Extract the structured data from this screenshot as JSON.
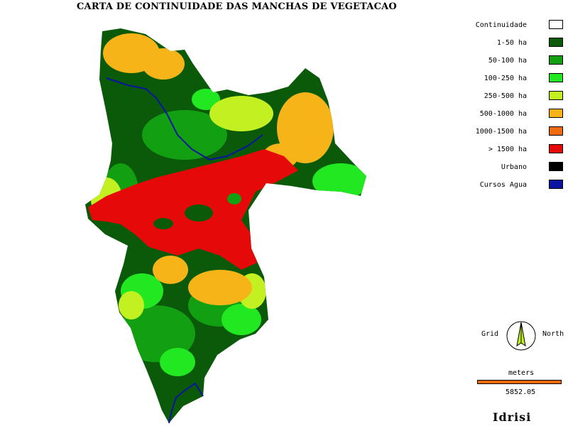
{
  "title": "CARTA DE CONTINUIDADE DAS MANCHAS DE VEGETACAO",
  "legend": [
    {
      "label": "Continuidade",
      "color": "#ffffff"
    },
    {
      "label": "1-50 ha",
      "color": "#0a5a0a"
    },
    {
      "label": "50-100 ha",
      "color": "#12a012"
    },
    {
      "label": "100-250 ha",
      "color": "#22e822"
    },
    {
      "label": "250-500 ha",
      "color": "#c2f020"
    },
    {
      "label": "500-1000 ha",
      "color": "#f7b419"
    },
    {
      "label": "1000-1500 ha",
      "color": "#f06a10"
    },
    {
      "label": "> 1500 ha",
      "color": "#e50909"
    },
    {
      "label": "Urbano",
      "color": "#000000"
    },
    {
      "label": "Cursos Agua",
      "color": "#0a14a0"
    }
  ],
  "compass": {
    "grid_label": "Grid",
    "north_label": "North"
  },
  "scale": {
    "unit": "meters",
    "value": "5852.05"
  },
  "brand": "Idrisi"
}
